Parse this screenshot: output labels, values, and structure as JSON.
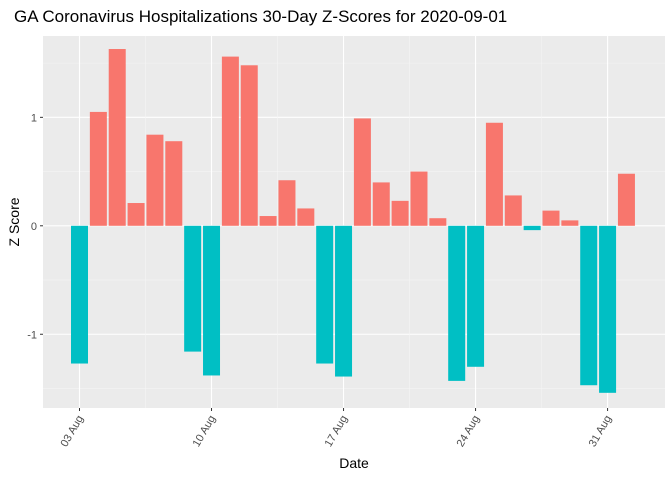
{
  "chart_data": {
    "type": "bar",
    "title": "GA Coronavirus Hospitalizations 30-Day Z-Scores for 2020-09-01",
    "xlabel": "Date",
    "ylabel": "Z Score",
    "x_ticks": [
      "03 Aug",
      "10 Aug",
      "17 Aug",
      "24 Aug",
      "31 Aug"
    ],
    "y_ticks": [
      "-1",
      "0",
      "1"
    ],
    "ylim": [
      -1.68,
      1.75
    ],
    "categories": [
      "2020-08-03",
      "2020-08-04",
      "2020-08-05",
      "2020-08-06",
      "2020-08-07",
      "2020-08-08",
      "2020-08-09",
      "2020-08-10",
      "2020-08-11",
      "2020-08-12",
      "2020-08-13",
      "2020-08-14",
      "2020-08-15",
      "2020-08-16",
      "2020-08-17",
      "2020-08-18",
      "2020-08-19",
      "2020-08-20",
      "2020-08-21",
      "2020-08-22",
      "2020-08-23",
      "2020-08-24",
      "2020-08-25",
      "2020-08-26",
      "2020-08-27",
      "2020-08-28",
      "2020-08-29",
      "2020-08-30",
      "2020-08-31",
      "2020-09-01"
    ],
    "values": [
      -1.27,
      1.05,
      1.63,
      0.21,
      0.84,
      0.78,
      -1.16,
      -1.38,
      1.56,
      1.48,
      0.09,
      0.42,
      0.16,
      -1.27,
      -1.39,
      0.99,
      0.4,
      0.23,
      0.5,
      0.07,
      -1.43,
      -1.3,
      0.95,
      0.28,
      -0.04,
      0.14,
      0.05,
      -1.47,
      -1.54,
      0.48
    ],
    "colors": {
      "positive": "#f8766d",
      "negative": "#00bfc4",
      "panel": "#ebebeb",
      "grid_major": "#ffffff",
      "grid_minor": "#f5f5f5"
    },
    "grid": true,
    "legend": "none"
  }
}
